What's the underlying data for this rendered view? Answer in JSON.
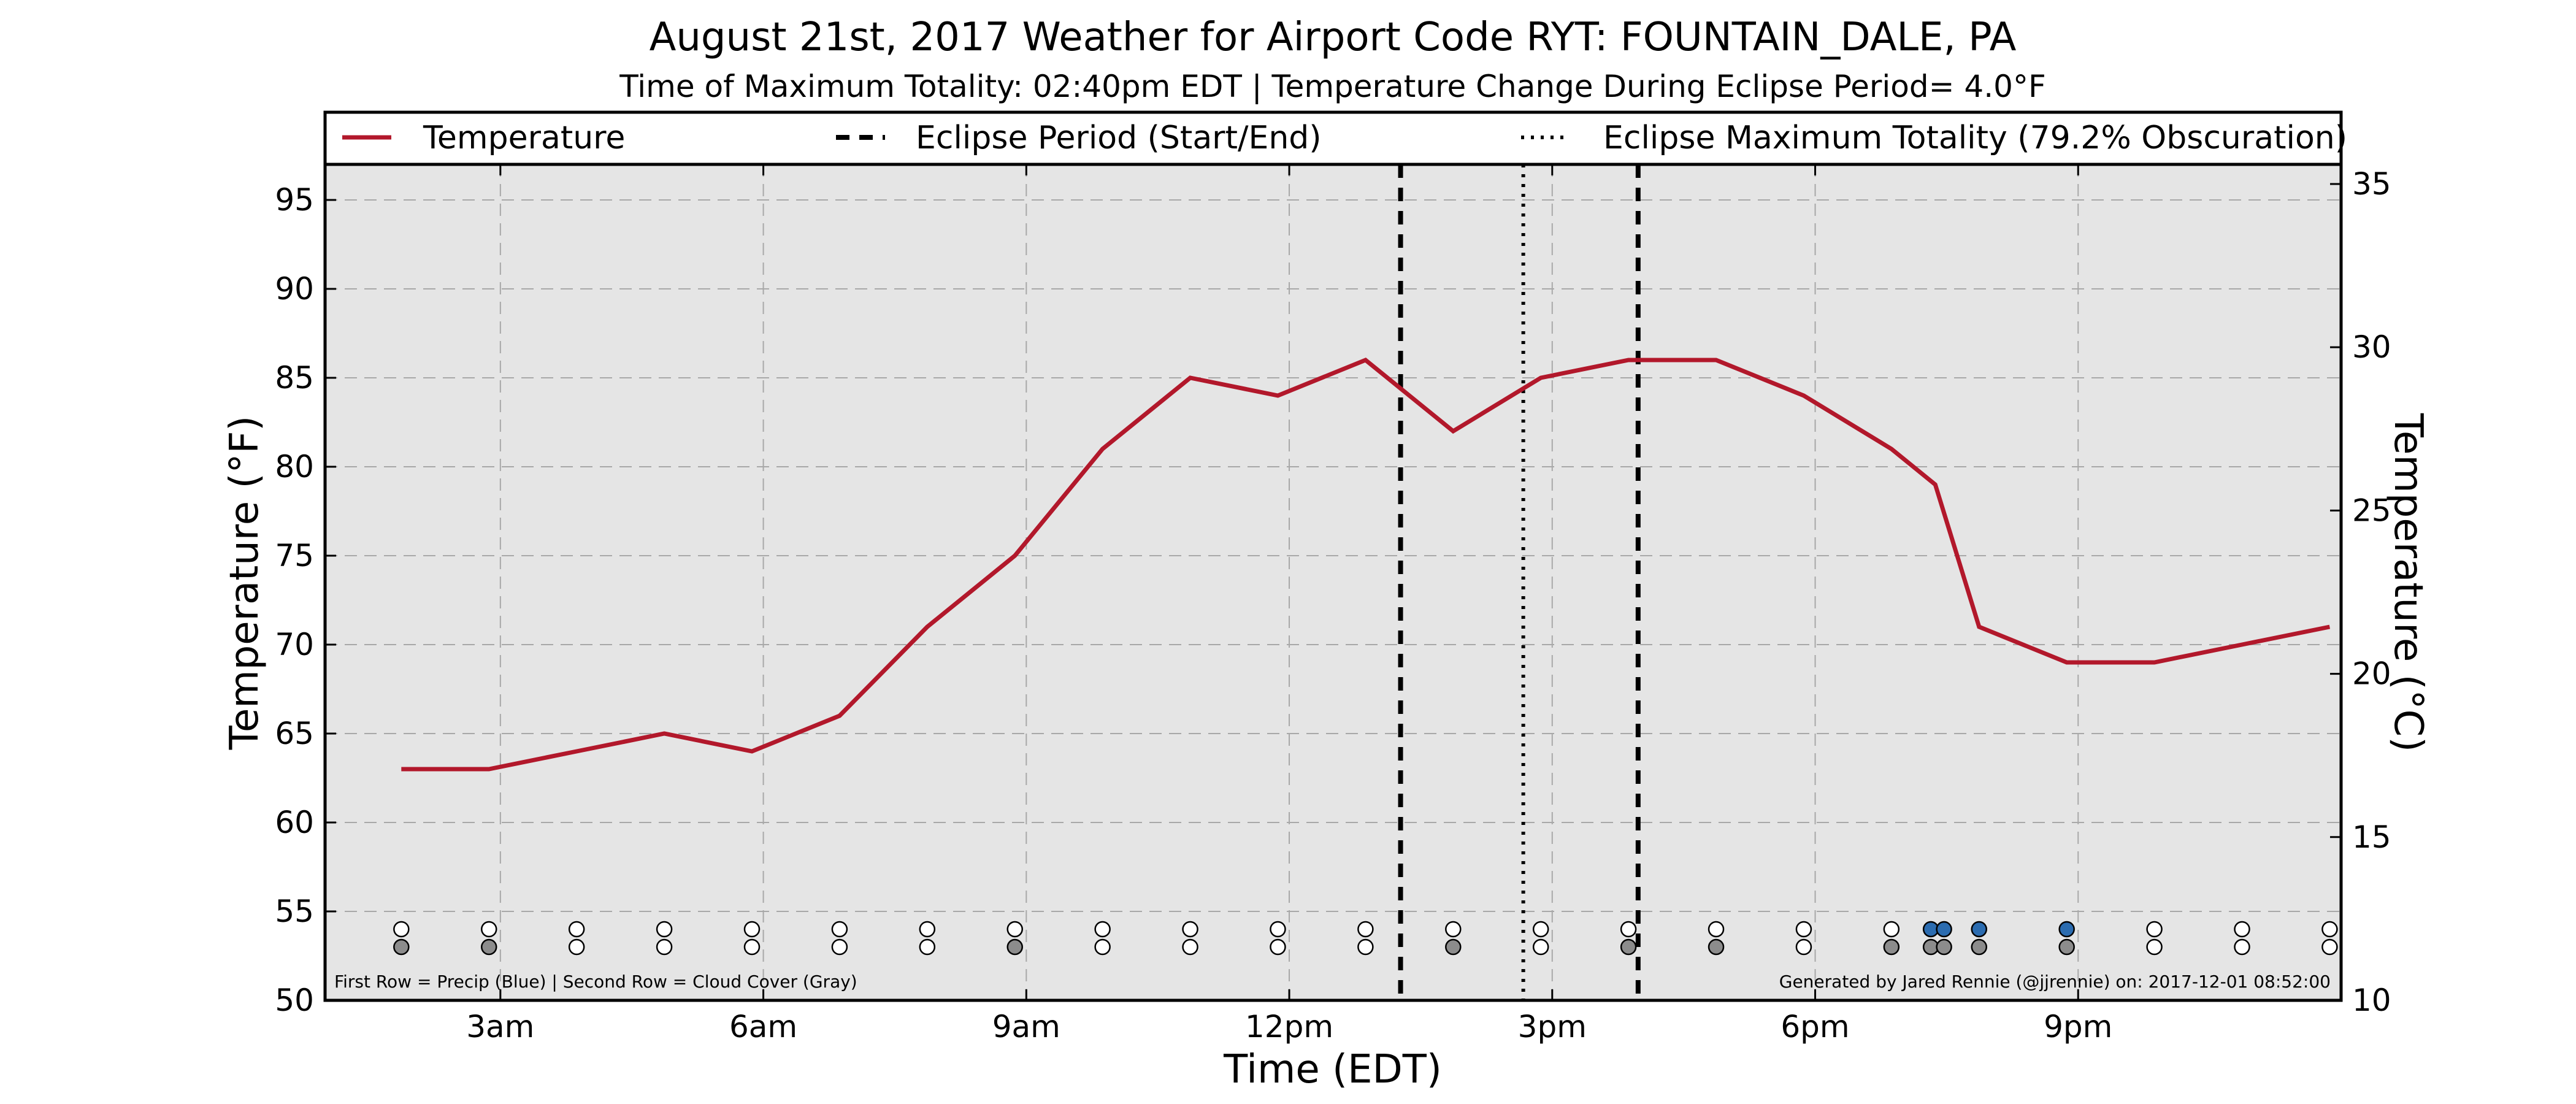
{
  "chart_data": {
    "type": "line",
    "title": "August 21st, 2017 Weather for Airport Code RYT: FOUNTAIN_DALE, PA",
    "subtitle": "Time of Maximum Totality: 02:40pm EDT | Temperature Change During Eclipse Period= 4.0°F",
    "xlabel": "Time (EDT)",
    "ylabel": "Temperature (°F)",
    "ylabel_right": "Temperature (°C)",
    "xlim": [
      1.0,
      24.0
    ],
    "ylim": [
      50,
      97
    ],
    "ylim_right": [
      10,
      35.6
    ],
    "x_ticks": [
      {
        "x": 3,
        "label": "3am"
      },
      {
        "x": 6,
        "label": "6am"
      },
      {
        "x": 9,
        "label": "9am"
      },
      {
        "x": 12,
        "label": "12pm"
      },
      {
        "x": 15,
        "label": "3pm"
      },
      {
        "x": 18,
        "label": "6pm"
      },
      {
        "x": 21,
        "label": "9pm"
      }
    ],
    "y_ticks": [
      50,
      55,
      60,
      65,
      70,
      75,
      80,
      85,
      90,
      95
    ],
    "y_ticks_right": [
      10,
      15,
      20,
      25,
      30,
      35
    ],
    "grid": true,
    "legend_position": "top",
    "legend": [
      {
        "label": "Temperature",
        "style": "solid",
        "color": "#b2182b"
      },
      {
        "label": "Eclipse Period (Start/End)",
        "style": "dashed",
        "color": "#000000"
      },
      {
        "label": "Eclipse Maximum Totality (79.2% Obscuration)",
        "style": "dotted",
        "color": "#000000"
      }
    ],
    "series": [
      {
        "name": "Temperature",
        "color": "#b2182b",
        "x": [
          1.87,
          2.87,
          3.87,
          4.87,
          5.87,
          6.87,
          7.87,
          8.87,
          9.87,
          10.87,
          11.87,
          12.87,
          13.87,
          14.87,
          15.87,
          16.87,
          17.87,
          18.87,
          19.37,
          19.87,
          20.87,
          21.87,
          22.87,
          23.87
        ],
        "y": [
          63,
          63,
          64,
          65,
          64,
          66,
          71,
          75,
          81,
          85,
          84,
          86,
          82,
          85,
          86,
          86,
          84,
          81,
          79,
          71,
          69,
          69,
          70,
          71
        ]
      }
    ],
    "eclipse_start": 13.27,
    "eclipse_end": 15.98,
    "eclipse_max": 14.67,
    "precip_row_y": 54,
    "cloud_row_y": 53,
    "obs_markers": [
      {
        "x": 1.87,
        "precip": "none",
        "cloud": "gray"
      },
      {
        "x": 2.87,
        "precip": "none",
        "cloud": "gray"
      },
      {
        "x": 3.87,
        "precip": "none",
        "cloud": "none"
      },
      {
        "x": 4.87,
        "precip": "none",
        "cloud": "none"
      },
      {
        "x": 5.87,
        "precip": "none",
        "cloud": "none"
      },
      {
        "x": 6.87,
        "precip": "none",
        "cloud": "none"
      },
      {
        "x": 7.87,
        "precip": "none",
        "cloud": "none"
      },
      {
        "x": 8.87,
        "precip": "none",
        "cloud": "gray"
      },
      {
        "x": 9.87,
        "precip": "none",
        "cloud": "none"
      },
      {
        "x": 10.87,
        "precip": "none",
        "cloud": "none"
      },
      {
        "x": 11.87,
        "precip": "none",
        "cloud": "none"
      },
      {
        "x": 12.87,
        "precip": "none",
        "cloud": "none"
      },
      {
        "x": 13.87,
        "precip": "none",
        "cloud": "gray"
      },
      {
        "x": 14.87,
        "precip": "none",
        "cloud": "none"
      },
      {
        "x": 15.87,
        "precip": "none",
        "cloud": "gray"
      },
      {
        "x": 16.87,
        "precip": "none",
        "cloud": "gray"
      },
      {
        "x": 17.87,
        "precip": "none",
        "cloud": "none"
      },
      {
        "x": 18.87,
        "precip": "none",
        "cloud": "gray"
      },
      {
        "x": 19.32,
        "precip": "blue",
        "cloud": "gray"
      },
      {
        "x": 19.47,
        "precip": "blue",
        "cloud": "gray"
      },
      {
        "x": 19.87,
        "precip": "blue",
        "cloud": "gray"
      },
      {
        "x": 20.87,
        "precip": "blue",
        "cloud": "gray"
      },
      {
        "x": 21.87,
        "precip": "none",
        "cloud": "none"
      },
      {
        "x": 22.87,
        "precip": "none",
        "cloud": "none"
      },
      {
        "x": 23.87,
        "precip": "none",
        "cloud": "none"
      }
    ],
    "annotations": {
      "left": "First Row = Precip (Blue) | Second Row = Cloud Cover (Gray)",
      "right": "Generated by Jared Rennie (@jjrennie) on: 2017-12-01 08:52:00"
    },
    "colors": {
      "plot_bg": "#e5e5e5",
      "grid": "#a8a8a8",
      "precip": "#2b6cb0",
      "cloud": "#8c8c8c",
      "empty": "#ffffff"
    }
  }
}
